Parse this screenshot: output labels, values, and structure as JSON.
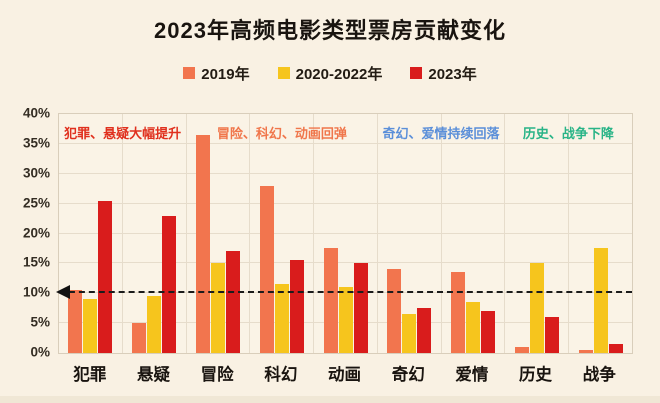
{
  "title": "2023年高频电影类型票房贡献变化",
  "chart_data": {
    "type": "bar",
    "title": "2023年高频电影类型票房贡献变化",
    "categories": [
      "犯罪",
      "悬疑",
      "冒险",
      "科幻",
      "动画",
      "奇幻",
      "爱情",
      "历史",
      "战争"
    ],
    "series": [
      {
        "name": "2019年",
        "color": "#F2754E",
        "values": [
          10.5,
          5,
          36.5,
          28,
          17.5,
          14,
          13.5,
          1,
          0.5
        ]
      },
      {
        "name": "2020-2022年",
        "color": "#F6C51D",
        "values": [
          9,
          9.5,
          15,
          11.5,
          11,
          6.5,
          8.5,
          15,
          17.5
        ]
      },
      {
        "name": "2023年",
        "color": "#D91C1C",
        "values": [
          25.5,
          23,
          17,
          15.5,
          15,
          7.5,
          7,
          6,
          1.5
        ]
      }
    ],
    "ylabel": "",
    "xlabel": "",
    "ylim": [
      0,
      40
    ],
    "ytick_step": 5,
    "ytick_labels": [
      "40%",
      "35%",
      "30%",
      "25%",
      "20%",
      "15%",
      "10%",
      "5%",
      "0%"
    ],
    "grid": true,
    "legend_position": "top",
    "reference_line": {
      "value": 10,
      "style": "dashed",
      "color": "#1B1B1B",
      "arrow": "left"
    },
    "annotations": [
      {
        "text": "犯罪、悬疑大幅提升",
        "color": "#E0301E",
        "start": 0,
        "end": 1
      },
      {
        "text": "冒险、科幻、动画回弹",
        "color": "#F0764B",
        "start": 2,
        "end": 4
      },
      {
        "text": "奇幻、爱情持续回落",
        "color": "#5B8FD9",
        "start": 5,
        "end": 6
      },
      {
        "text": "历史、战争下降",
        "color": "#29B487",
        "start": 7,
        "end": 8
      }
    ]
  }
}
